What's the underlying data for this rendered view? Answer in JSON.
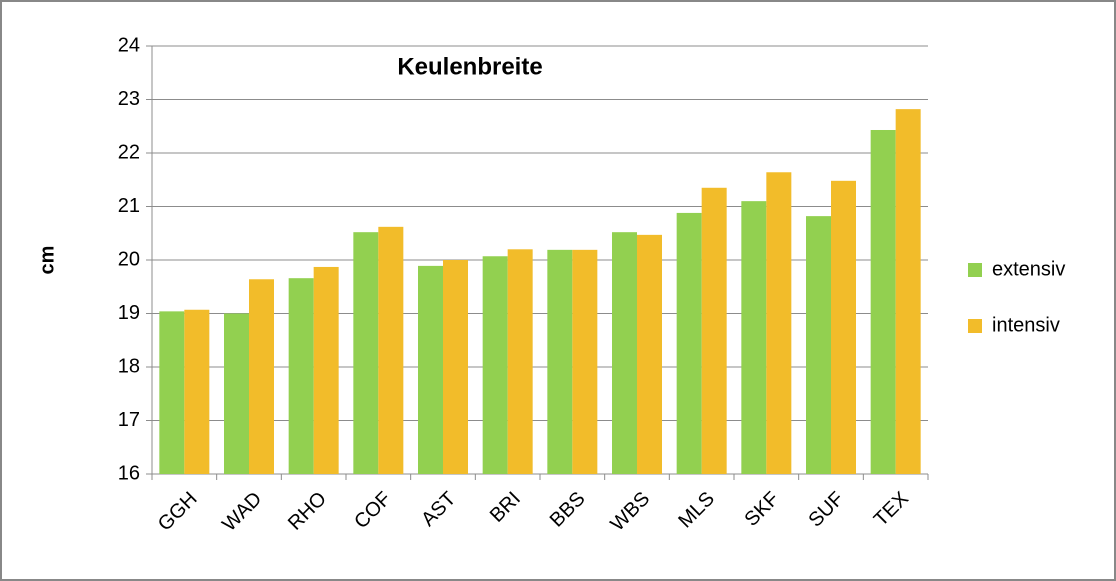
{
  "chart_data": {
    "type": "bar",
    "title": "Keulenbreite",
    "y_label": "cm",
    "categories": [
      "GGH",
      "WAD",
      "RHO",
      "COF",
      "AST",
      "BRI",
      "BBS",
      "WBS",
      "MLS",
      "SKF",
      "SUF",
      "TEX"
    ],
    "series": [
      {
        "name": "extensiv",
        "color": "#92d050",
        "values": [
          19.04,
          19.0,
          19.66,
          20.52,
          19.89,
          20.07,
          20.19,
          20.52,
          20.88,
          21.1,
          20.82,
          22.43
        ]
      },
      {
        "name": "intensiv",
        "color": "#f2bc2a",
        "values": [
          19.07,
          19.64,
          19.87,
          20.62,
          20.0,
          20.2,
          20.19,
          20.47,
          21.35,
          21.64,
          21.48,
          22.82
        ]
      }
    ],
    "ylim": [
      16,
      24
    ],
    "yticks": [
      16,
      17,
      18,
      19,
      20,
      21,
      22,
      23,
      24
    ],
    "grid": true,
    "legend": "right"
  }
}
